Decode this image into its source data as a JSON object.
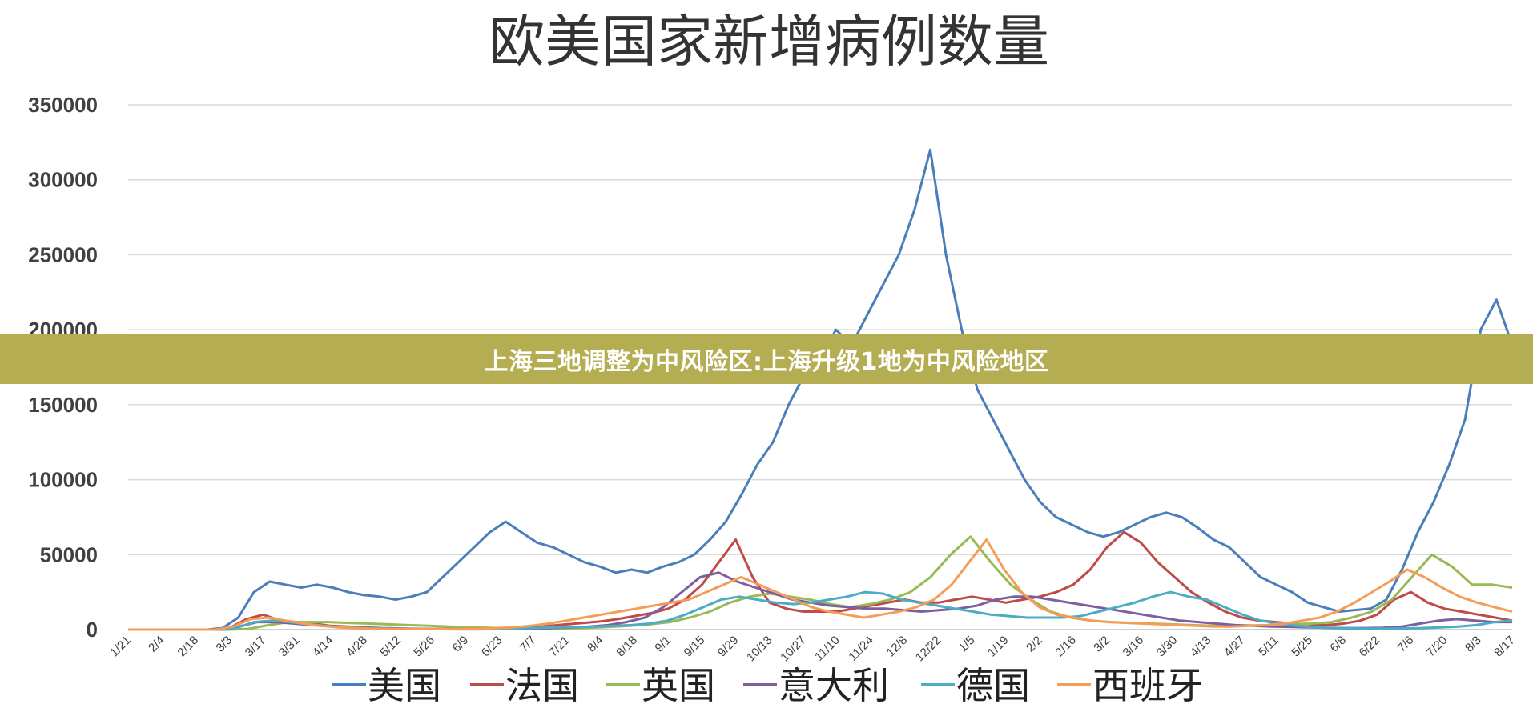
{
  "banner": {
    "text": "上海三地调整为中风险区:上海升级1地为中风险地区"
  },
  "chart_data": {
    "type": "line",
    "title": "欧美国家新增病例数量",
    "xlabel": "",
    "ylabel": "",
    "ylim": [
      0,
      350000
    ],
    "yticks": [
      0,
      50000,
      100000,
      150000,
      200000,
      250000,
      300000,
      350000
    ],
    "x_tick_labels": [
      "1/21",
      "2/4",
      "2/18",
      "3/3",
      "3/17",
      "3/31",
      "4/14",
      "4/28",
      "5/12",
      "5/26",
      "6/9",
      "6/23",
      "7/7",
      "7/21",
      "8/4",
      "8/18",
      "9/1",
      "9/15",
      "9/29",
      "10/13",
      "10/27",
      "11/10",
      "11/24",
      "12/8",
      "12/22",
      "1/5",
      "1/19",
      "2/2",
      "2/16",
      "3/2",
      "3/16",
      "3/30",
      "4/13",
      "4/27",
      "5/11",
      "5/25",
      "6/8",
      "6/22",
      "7/6",
      "7/20",
      "8/3",
      "8/17"
    ],
    "grid": true,
    "legend_position": "bottom",
    "series": [
      {
        "name": "美国",
        "color": "#4a7ebb",
        "values": [
          0,
          0,
          0,
          0,
          0,
          0,
          1000,
          8000,
          25000,
          32000,
          30000,
          28000,
          30000,
          28000,
          25000,
          23000,
          22000,
          20000,
          22000,
          25000,
          35000,
          45000,
          55000,
          65000,
          72000,
          65000,
          58000,
          55000,
          50000,
          45000,
          42000,
          38000,
          40000,
          38000,
          42000,
          45000,
          50000,
          60000,
          72000,
          90000,
          110000,
          125000,
          150000,
          170000,
          180000,
          200000,
          190000,
          210000,
          230000,
          250000,
          280000,
          320000,
          250000,
          200000,
          160000,
          140000,
          120000,
          100000,
          85000,
          75000,
          70000,
          65000,
          62000,
          65000,
          70000,
          75000,
          78000,
          75000,
          68000,
          60000,
          55000,
          45000,
          35000,
          30000,
          25000,
          18000,
          15000,
          12000,
          13000,
          14000,
          20000,
          40000,
          65000,
          85000,
          110000,
          140000,
          200000,
          220000,
          190000
        ]
      },
      {
        "name": "法国",
        "color": "#be4b48",
        "values": [
          0,
          0,
          0,
          0,
          0,
          0,
          1000,
          7000,
          10000,
          6000,
          5000,
          4000,
          2500,
          2000,
          1500,
          1000,
          800,
          600,
          500,
          500,
          600,
          700,
          900,
          1200,
          1800,
          2500,
          3500,
          4500,
          5500,
          7000,
          9000,
          11000,
          14000,
          20000,
          30000,
          45000,
          60000,
          35000,
          18000,
          14000,
          12000,
          12000,
          12000,
          14000,
          16000,
          18000,
          20000,
          18000,
          18000,
          20000,
          22000,
          20000,
          18000,
          20000,
          22000,
          25000,
          30000,
          40000,
          55000,
          65000,
          58000,
          45000,
          35000,
          25000,
          18000,
          12000,
          8000,
          6000,
          5000,
          4000,
          3500,
          3000,
          4000,
          6000,
          10000,
          20000,
          25000,
          18000,
          14000,
          12000,
          10000,
          8000,
          6000
        ]
      },
      {
        "name": "英国",
        "color": "#98b954",
        "values": [
          0,
          0,
          0,
          0,
          0,
          0,
          500,
          3000,
          5000,
          5000,
          5000,
          4500,
          4000,
          3500,
          3000,
          2500,
          2000,
          1500,
          1200,
          800,
          700,
          700,
          900,
          1200,
          1800,
          2500,
          3500,
          5000,
          8000,
          12000,
          18000,
          22000,
          24000,
          22000,
          20000,
          17000,
          15000,
          17000,
          20000,
          25000,
          35000,
          50000,
          62000,
          45000,
          30000,
          20000,
          12000,
          8000,
          6000,
          5000,
          4500,
          4000,
          3500,
          3000,
          2500,
          2500,
          2800,
          3000,
          3500,
          4000,
          5000,
          8000,
          12000,
          20000,
          35000,
          50000,
          42000,
          30000,
          30000,
          28000
        ]
      },
      {
        "name": "意大利",
        "color": "#7d5fa0",
        "values": [
          0,
          0,
          0,
          0,
          0,
          0,
          2000,
          5000,
          5000,
          4000,
          3000,
          2000,
          1500,
          1000,
          700,
          500,
          300,
          250,
          200,
          200,
          300,
          400,
          600,
          1000,
          1500,
          2000,
          3000,
          5000,
          8000,
          15000,
          25000,
          35000,
          38000,
          32000,
          28000,
          24000,
          20000,
          18000,
          16000,
          15000,
          14000,
          14000,
          13000,
          12000,
          13000,
          14000,
          16000,
          20000,
          22000,
          22000,
          20000,
          18000,
          16000,
          14000,
          12000,
          10000,
          8000,
          6000,
          5000,
          4000,
          3000,
          2500,
          2000,
          1800,
          1500,
          1200,
          1000,
          1000,
          1200,
          2000,
          4000,
          6000,
          7000,
          6000,
          5000,
          5000
        ]
      },
      {
        "name": "德国",
        "color": "#4bacc6",
        "values": [
          0,
          0,
          0,
          0,
          0,
          0,
          1000,
          5000,
          6000,
          5000,
          3500,
          2500,
          1500,
          1000,
          800,
          600,
          500,
          400,
          400,
          400,
          500,
          600,
          800,
          1200,
          1500,
          1800,
          2000,
          2500,
          3000,
          4000,
          6000,
          10000,
          15000,
          20000,
          22000,
          20000,
          18000,
          17000,
          18000,
          20000,
          22000,
          25000,
          24000,
          20000,
          18000,
          16000,
          14000,
          12000,
          10000,
          9000,
          8000,
          8000,
          8000,
          9000,
          12000,
          15000,
          18000,
          22000,
          25000,
          22000,
          20000,
          15000,
          10000,
          6000,
          4000,
          2500,
          1500,
          1000,
          800,
          700,
          700,
          800,
          1000,
          1500,
          2000,
          3000,
          5000,
          6000
        ]
      },
      {
        "name": "西班牙",
        "color": "#f59d56",
        "values": [
          0,
          0,
          0,
          0,
          0,
          0,
          2000,
          7000,
          8000,
          6000,
          4000,
          2500,
          1500,
          1000,
          500,
          300,
          300,
          300,
          300,
          400,
          600,
          1000,
          1500,
          2500,
          4000,
          6000,
          8000,
          10000,
          12000,
          14000,
          16000,
          18000,
          20000,
          25000,
          30000,
          35000,
          30000,
          25000,
          20000,
          15000,
          12000,
          10000,
          8000,
          10000,
          12000,
          15000,
          20000,
          30000,
          45000,
          60000,
          40000,
          25000,
          15000,
          10000,
          8000,
          6000,
          5000,
          4500,
          4000,
          3500,
          3000,
          2500,
          2000,
          2000,
          2500,
          3000,
          4000,
          6000,
          8000,
          12000,
          18000,
          25000,
          32000,
          40000,
          35000,
          28000,
          22000,
          18000,
          15000,
          12000
        ]
      }
    ]
  }
}
